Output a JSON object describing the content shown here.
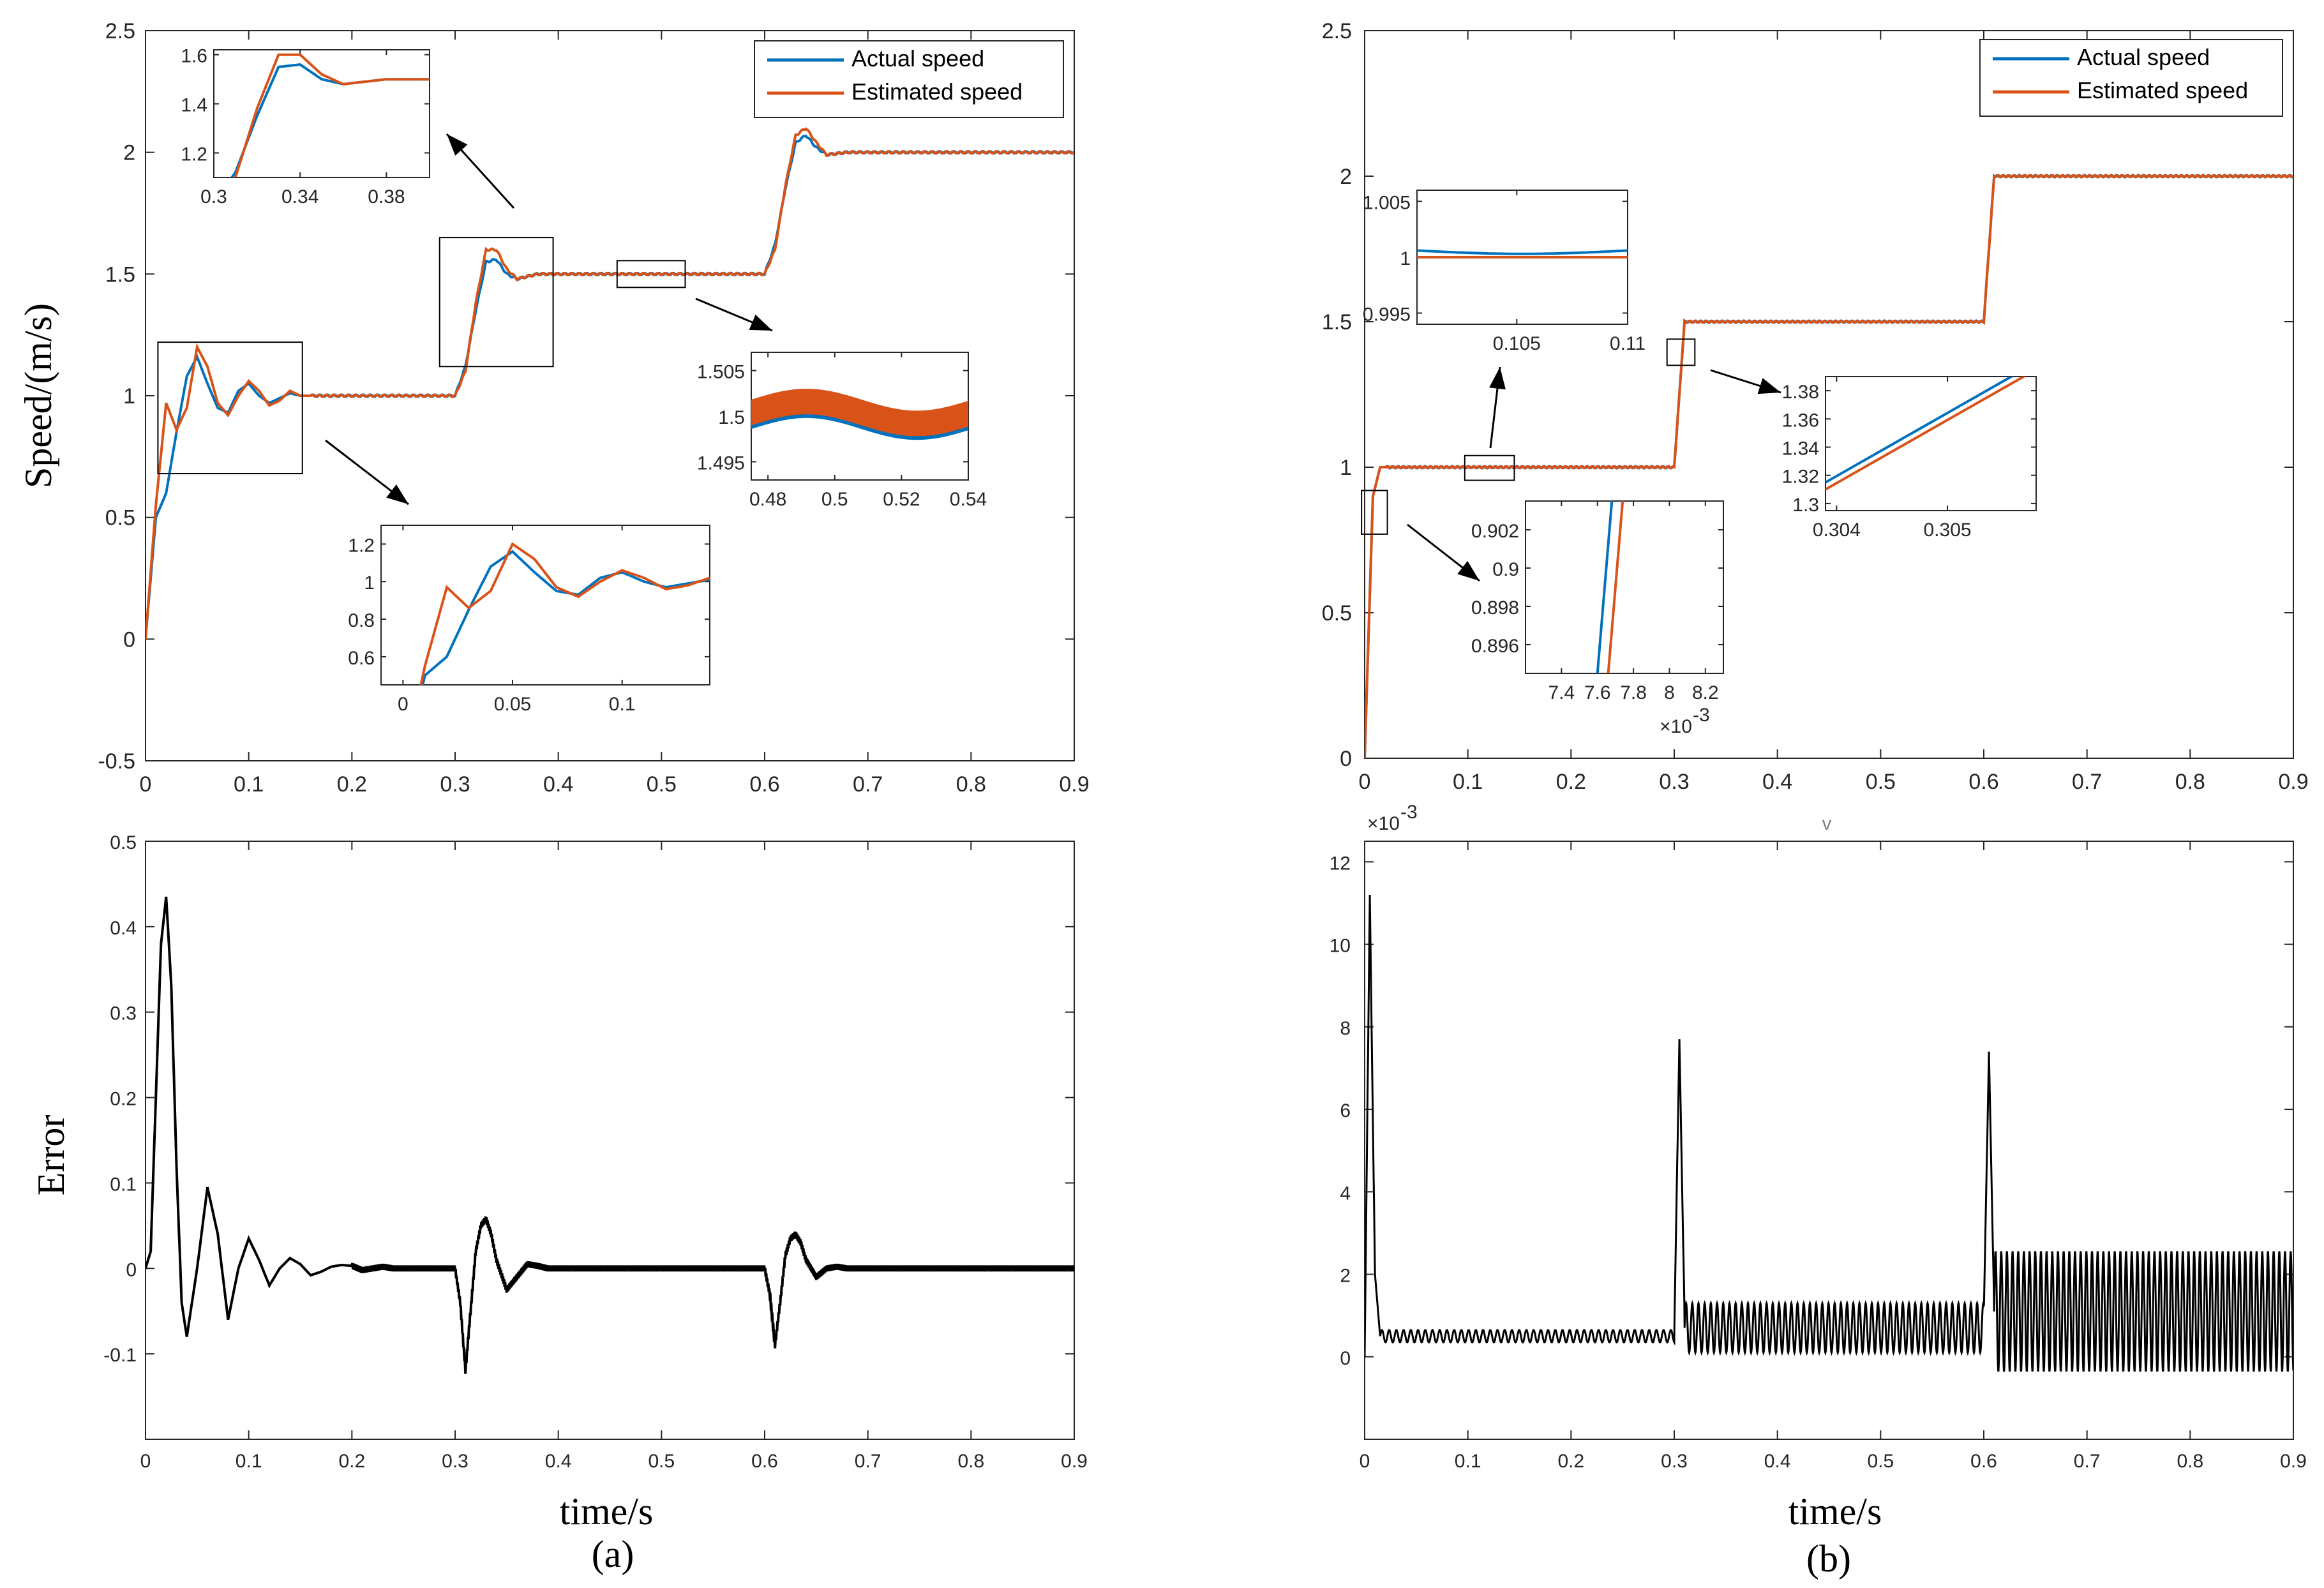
{
  "colors": {
    "actual": "#0072BD",
    "estimated": "#D95319",
    "error": "#000000",
    "axis": "#262626"
  },
  "panel_labels": {
    "a": "(a)",
    "b": "(b)"
  },
  "stray_mark": "v",
  "chart_data": [
    {
      "id": "a-speed",
      "type": "line",
      "panel": "(a)",
      "title": "",
      "xlabel": "",
      "ylabel": "Speed/(m/s)",
      "xlim": [
        0,
        0.9
      ],
      "ylim": [
        -0.5,
        2.5
      ],
      "xticks": [
        "0",
        "0.1",
        "0.2",
        "0.3",
        "0.4",
        "0.5",
        "0.6",
        "0.7",
        "0.8",
        "0.9"
      ],
      "yticks": [
        "-0.5",
        "0",
        "0.5",
        "1",
        "1.5",
        "2",
        "2.5"
      ],
      "legend": {
        "position": "top-right",
        "entries": [
          "Actual speed",
          "Estimated speed"
        ]
      },
      "reference_steps": [
        [
          0,
          1.0
        ],
        [
          0.3,
          1.5
        ],
        [
          0.6,
          2.0
        ]
      ],
      "series": [
        {
          "name": "Actual speed",
          "x": [
            0,
            0.01,
            0.02,
            0.03,
            0.04,
            0.05,
            0.06,
            0.07,
            0.08,
            0.09,
            0.1,
            0.11,
            0.12,
            0.13,
            0.14,
            0.15,
            0.2,
            0.3,
            0.31,
            0.32,
            0.33,
            0.34,
            0.35,
            0.36,
            0.38,
            0.4,
            0.6,
            0.61,
            0.62,
            0.63,
            0.64,
            0.65,
            0.66,
            0.68,
            0.7,
            0.9
          ],
          "values": [
            0,
            0.5,
            0.6,
            0.85,
            1.08,
            1.16,
            1.05,
            0.95,
            0.93,
            1.02,
            1.05,
            1.0,
            0.97,
            0.99,
            1.01,
            1.0,
            1.0,
            1.0,
            1.12,
            1.35,
            1.55,
            1.56,
            1.5,
            1.48,
            1.5,
            1.5,
            1.5,
            1.62,
            1.85,
            2.04,
            2.07,
            2.02,
            1.99,
            2.0,
            2.0,
            2.0
          ]
        },
        {
          "name": "Estimated speed",
          "x": [
            0,
            0.01,
            0.02,
            0.03,
            0.04,
            0.05,
            0.06,
            0.07,
            0.08,
            0.09,
            0.1,
            0.11,
            0.12,
            0.13,
            0.14,
            0.15,
            0.2,
            0.3,
            0.31,
            0.32,
            0.33,
            0.34,
            0.35,
            0.36,
            0.38,
            0.4,
            0.6,
            0.61,
            0.62,
            0.63,
            0.64,
            0.65,
            0.66,
            0.68,
            0.7,
            0.9
          ],
          "values": [
            0,
            0.55,
            0.97,
            0.86,
            0.95,
            1.2,
            1.12,
            0.97,
            0.92,
            1.0,
            1.06,
            1.02,
            0.96,
            0.98,
            1.02,
            1.0,
            1.0,
            1.0,
            1.1,
            1.38,
            1.6,
            1.6,
            1.52,
            1.48,
            1.5,
            1.5,
            1.5,
            1.6,
            1.86,
            2.07,
            2.1,
            2.04,
            1.99,
            2.0,
            2.0,
            2.0
          ]
        }
      ],
      "insets": [
        {
          "xlim": [
            0.3,
            0.4
          ],
          "ylim": [
            1.1,
            1.62
          ],
          "xticks": [
            "0.3",
            "0.34",
            "0.38"
          ],
          "yticks": [
            "1.2",
            "1.4",
            "1.6"
          ]
        },
        {
          "xlim": [
            0.475,
            0.54
          ],
          "ylim": [
            1.493,
            1.507
          ],
          "xticks": [
            "0.48",
            "0.5",
            "0.52",
            "0.54"
          ],
          "yticks": [
            "1.495",
            "1.5",
            "1.505"
          ]
        },
        {
          "xlim": [
            -0.01,
            0.14
          ],
          "ylim": [
            0.45,
            1.3
          ],
          "xticks": [
            "0",
            "0.05",
            "0.1"
          ],
          "yticks": [
            "0.6",
            "0.8",
            "1",
            "1.2"
          ]
        }
      ]
    },
    {
      "id": "a-error",
      "type": "line",
      "panel": "(a)",
      "title": "",
      "xlabel": "time/s",
      "ylabel": "Error",
      "xlim": [
        0,
        0.9
      ],
      "ylim": [
        -0.2,
        0.5
      ],
      "xticks": [
        "0",
        "0.1",
        "0.2",
        "0.3",
        "0.4",
        "0.5",
        "0.6",
        "0.7",
        "0.8",
        "0.9"
      ],
      "yticks": [
        "-0.1",
        "0",
        "0.1",
        "0.2",
        "0.3",
        "0.4",
        "0.5"
      ],
      "series": [
        {
          "name": "Error",
          "x": [
            0,
            0.005,
            0.01,
            0.015,
            0.02,
            0.025,
            0.03,
            0.035,
            0.04,
            0.05,
            0.06,
            0.07,
            0.08,
            0.09,
            0.1,
            0.11,
            0.12,
            0.13,
            0.14,
            0.15,
            0.16,
            0.17,
            0.18,
            0.19,
            0.2,
            0.21,
            0.22,
            0.23,
            0.24,
            0.25,
            0.3,
            0.305,
            0.31,
            0.315,
            0.32,
            0.325,
            0.33,
            0.335,
            0.34,
            0.35,
            0.36,
            0.37,
            0.38,
            0.39,
            0.4,
            0.6,
            0.605,
            0.61,
            0.615,
            0.62,
            0.625,
            0.63,
            0.635,
            0.64,
            0.65,
            0.66,
            0.67,
            0.68,
            0.9
          ],
          "values": [
            0,
            0.02,
            0.2,
            0.38,
            0.435,
            0.33,
            0.12,
            -0.04,
            -0.08,
            0.0,
            0.095,
            0.04,
            -0.06,
            0.0,
            0.035,
            0.01,
            -0.02,
            0.0,
            0.012,
            0.005,
            -0.008,
            -0.004,
            0.002,
            0.004,
            0.003,
            -0.002,
            0.0,
            0.002,
            0.0,
            0.0,
            0.0,
            -0.04,
            -0.12,
            -0.05,
            0.02,
            0.05,
            0.058,
            0.04,
            0.01,
            -0.025,
            -0.01,
            0.005,
            0.003,
            0.0,
            0.0,
            0.0,
            -0.03,
            -0.09,
            -0.04,
            0.015,
            0.035,
            0.04,
            0.03,
            0.01,
            -0.01,
            0.0,
            0.002,
            0.0,
            0.0
          ]
        }
      ]
    },
    {
      "id": "b-speed",
      "type": "line",
      "panel": "(b)",
      "title": "",
      "xlabel": "",
      "ylabel": "",
      "xlim": [
        0,
        0.9
      ],
      "ylim": [
        0,
        2.5
      ],
      "xticks": [
        "0",
        "0.1",
        "0.2",
        "0.3",
        "0.4",
        "0.5",
        "0.6",
        "0.7",
        "0.8",
        "0.9"
      ],
      "yticks": [
        "0",
        "0.5",
        "1",
        "1.5",
        "2",
        "2.5"
      ],
      "legend": {
        "position": "top-right",
        "entries": [
          "Actual speed",
          "Estimated speed"
        ]
      },
      "series": [
        {
          "name": "Actual speed",
          "x": [
            0,
            0.008,
            0.015,
            0.3,
            0.31,
            0.6,
            0.61,
            0.9
          ],
          "values": [
            0,
            0.9,
            1.0,
            1.0,
            1.5,
            1.5,
            2.0,
            2.0
          ]
        },
        {
          "name": "Estimated speed",
          "x": [
            0,
            0.008,
            0.015,
            0.3,
            0.31,
            0.6,
            0.61,
            0.9
          ],
          "values": [
            0,
            0.9,
            1.0,
            1.0,
            1.5,
            1.5,
            2.0,
            2.0
          ]
        }
      ],
      "insets": [
        {
          "xlim": [
            0.1005,
            0.11
          ],
          "ylim": [
            0.994,
            1.006
          ],
          "xticks": [
            "0.105",
            "0.11"
          ],
          "yticks": [
            "0.995",
            "1",
            "1.005"
          ]
        },
        {
          "xlim": [
            0.3039,
            0.3058
          ],
          "ylim": [
            1.295,
            1.39
          ],
          "xticks": [
            "0.304",
            "0.305"
          ],
          "yticks": [
            "1.3",
            "1.32",
            "1.34",
            "1.36",
            "1.38"
          ]
        },
        {
          "xlim": [
            7.2,
            8.3
          ],
          "ylim": [
            0.8945,
            0.9035
          ],
          "xticks": [
            "7.4",
            "7.6",
            "7.8",
            "8",
            "8.2"
          ],
          "yticks": [
            "0.896",
            "0.898",
            "0.9",
            "0.902"
          ],
          "exponent": "×10",
          "exponent_power": "-3"
        }
      ]
    },
    {
      "id": "b-error",
      "type": "line",
      "panel": "(b)",
      "title": "",
      "xlabel": "time/s",
      "ylabel": "",
      "xlim": [
        0,
        0.9
      ],
      "ylim": [
        -2,
        12.5
      ],
      "xticks": [
        "0",
        "0.1",
        "0.2",
        "0.3",
        "0.4",
        "0.5",
        "0.6",
        "0.7",
        "0.8",
        "0.9"
      ],
      "yticks": [
        "0",
        "2",
        "4",
        "6",
        "8",
        "10",
        "12"
      ],
      "exponent": "×10",
      "exponent_power": "-3",
      "series": [
        {
          "name": "Error",
          "x": [
            0,
            0.005,
            0.01,
            0.015,
            0.3,
            0.305,
            0.31,
            0.6,
            0.605,
            0.61,
            0.9
          ],
          "values": [
            0,
            11.2,
            2.0,
            0.5,
            0.5,
            7.7,
            1.0,
            1.0,
            7.4,
            1.2,
            1.2
          ]
        }
      ],
      "ripple": [
        {
          "x": [
            0.015,
            0.3
          ],
          "center": 0.5,
          "amplitude": 0.15,
          "period": 0.007
        },
        {
          "x": [
            0.31,
            0.6
          ],
          "center": 0.7,
          "amplitude": 0.6,
          "period": 0.006
        },
        {
          "x": [
            0.61,
            0.9
          ],
          "center": 1.1,
          "amplitude": 1.45,
          "period": 0.0055
        }
      ]
    }
  ]
}
